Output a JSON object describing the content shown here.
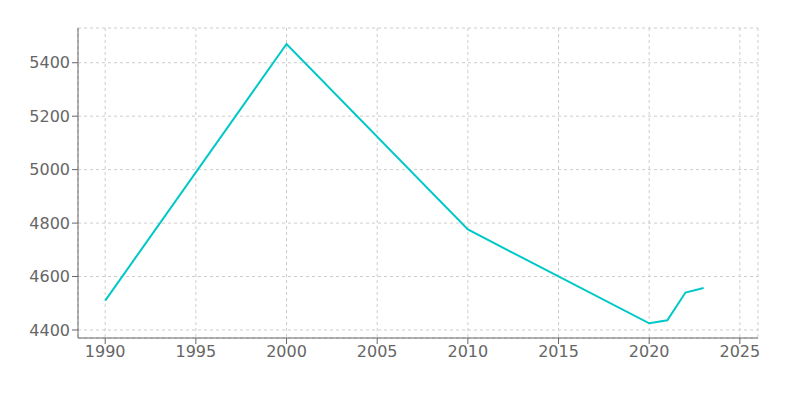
{
  "chart_data": {
    "type": "line",
    "x": [
      1990,
      2000,
      2010,
      2020,
      2021,
      2022,
      2023
    ],
    "values": [
      4510,
      5470,
      4776,
      4425,
      4436,
      4540,
      4557
    ],
    "color": "#00C8C8",
    "xlim": [
      1988.5,
      2026
    ],
    "ylim": [
      4370,
      5530
    ],
    "xticks": [
      1990,
      1995,
      2000,
      2005,
      2010,
      2015,
      2020,
      2025
    ],
    "yticks": [
      4400,
      4600,
      4800,
      5000,
      5200,
      5400
    ],
    "grid": true
  }
}
